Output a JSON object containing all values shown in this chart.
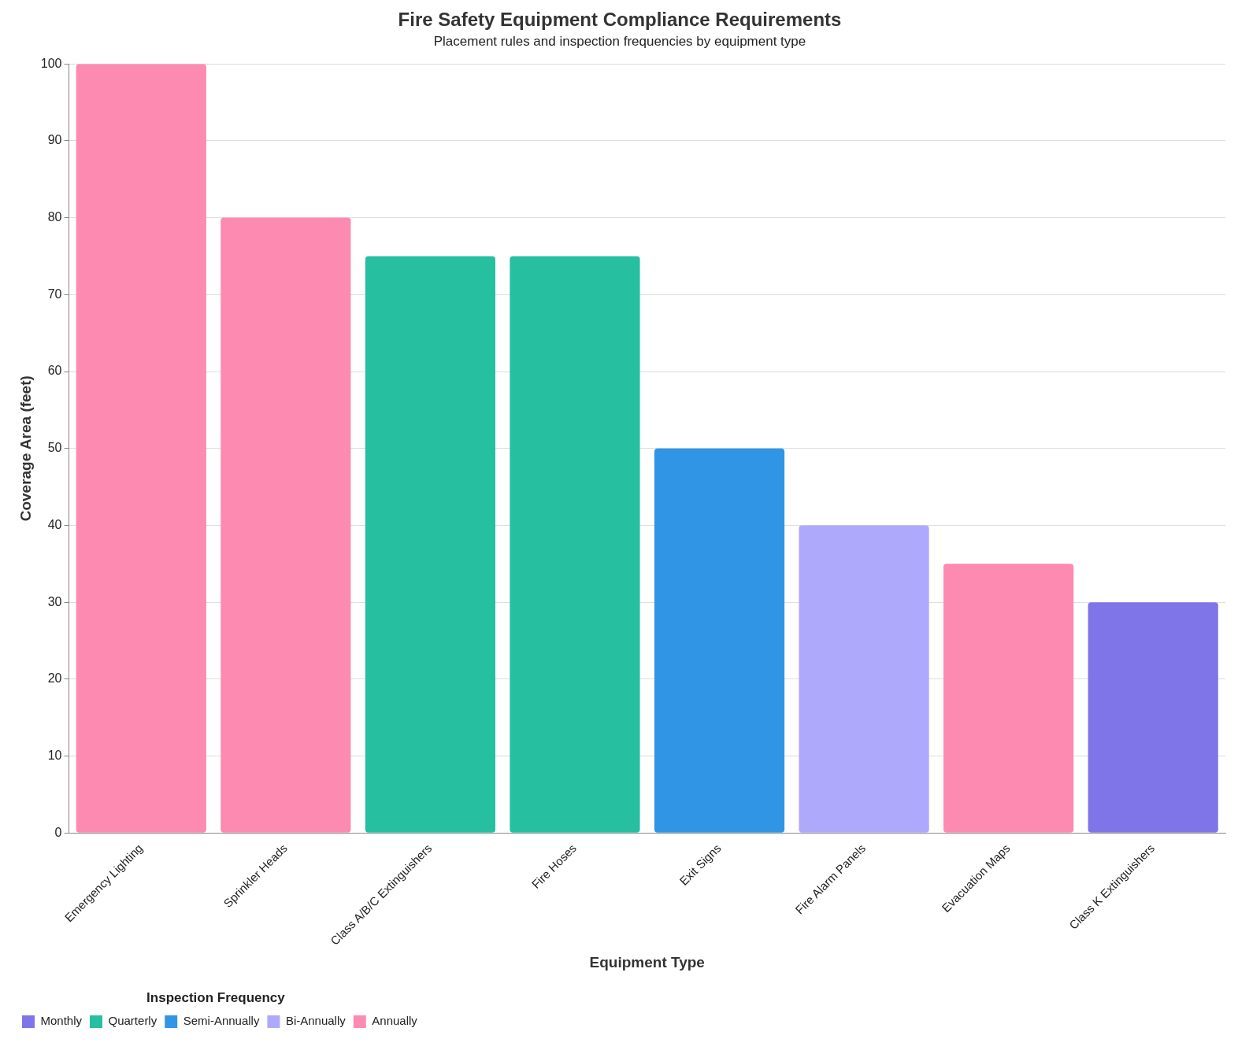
{
  "chart_data": {
    "type": "bar",
    "title": "Fire Safety Equipment Compliance Requirements",
    "subtitle": "Placement rules and inspection frequencies by equipment type",
    "xlabel": "Equipment Type",
    "ylabel": "Coverage Area (feet)",
    "legend_title": "Inspection Frequency",
    "categories": [
      "Emergency Lighting",
      "Sprinkler Heads",
      "Class A/B/C Extinguishers",
      "Fire Hoses",
      "Exit Signs",
      "Fire Alarm Panels",
      "Evacuation Maps",
      "Class K Extinguishers"
    ],
    "series": [
      {
        "name": "Monthly",
        "color": "#8075e8",
        "values": [
          null,
          null,
          null,
          null,
          null,
          null,
          null,
          30
        ]
      },
      {
        "name": "Quarterly",
        "color": "#26c0a0",
        "values": [
          null,
          null,
          75,
          75,
          null,
          null,
          null,
          null
        ]
      },
      {
        "name": "Semi-Annually",
        "color": "#3195e5",
        "values": [
          null,
          null,
          null,
          null,
          50,
          null,
          null,
          null
        ]
      },
      {
        "name": "Bi-Annually",
        "color": "#afa9fc",
        "values": [
          null,
          null,
          null,
          null,
          null,
          40,
          null,
          null
        ]
      },
      {
        "name": "Annually",
        "color": "#fd8bb1",
        "values": [
          100,
          80,
          null,
          null,
          null,
          null,
          35,
          null
        ]
      }
    ],
    "ylim": [
      0,
      100
    ],
    "yticks": [
      0,
      10,
      20,
      30,
      40,
      50,
      60,
      70,
      80,
      90,
      100
    ],
    "grid": "y",
    "legend": "bottom left"
  }
}
